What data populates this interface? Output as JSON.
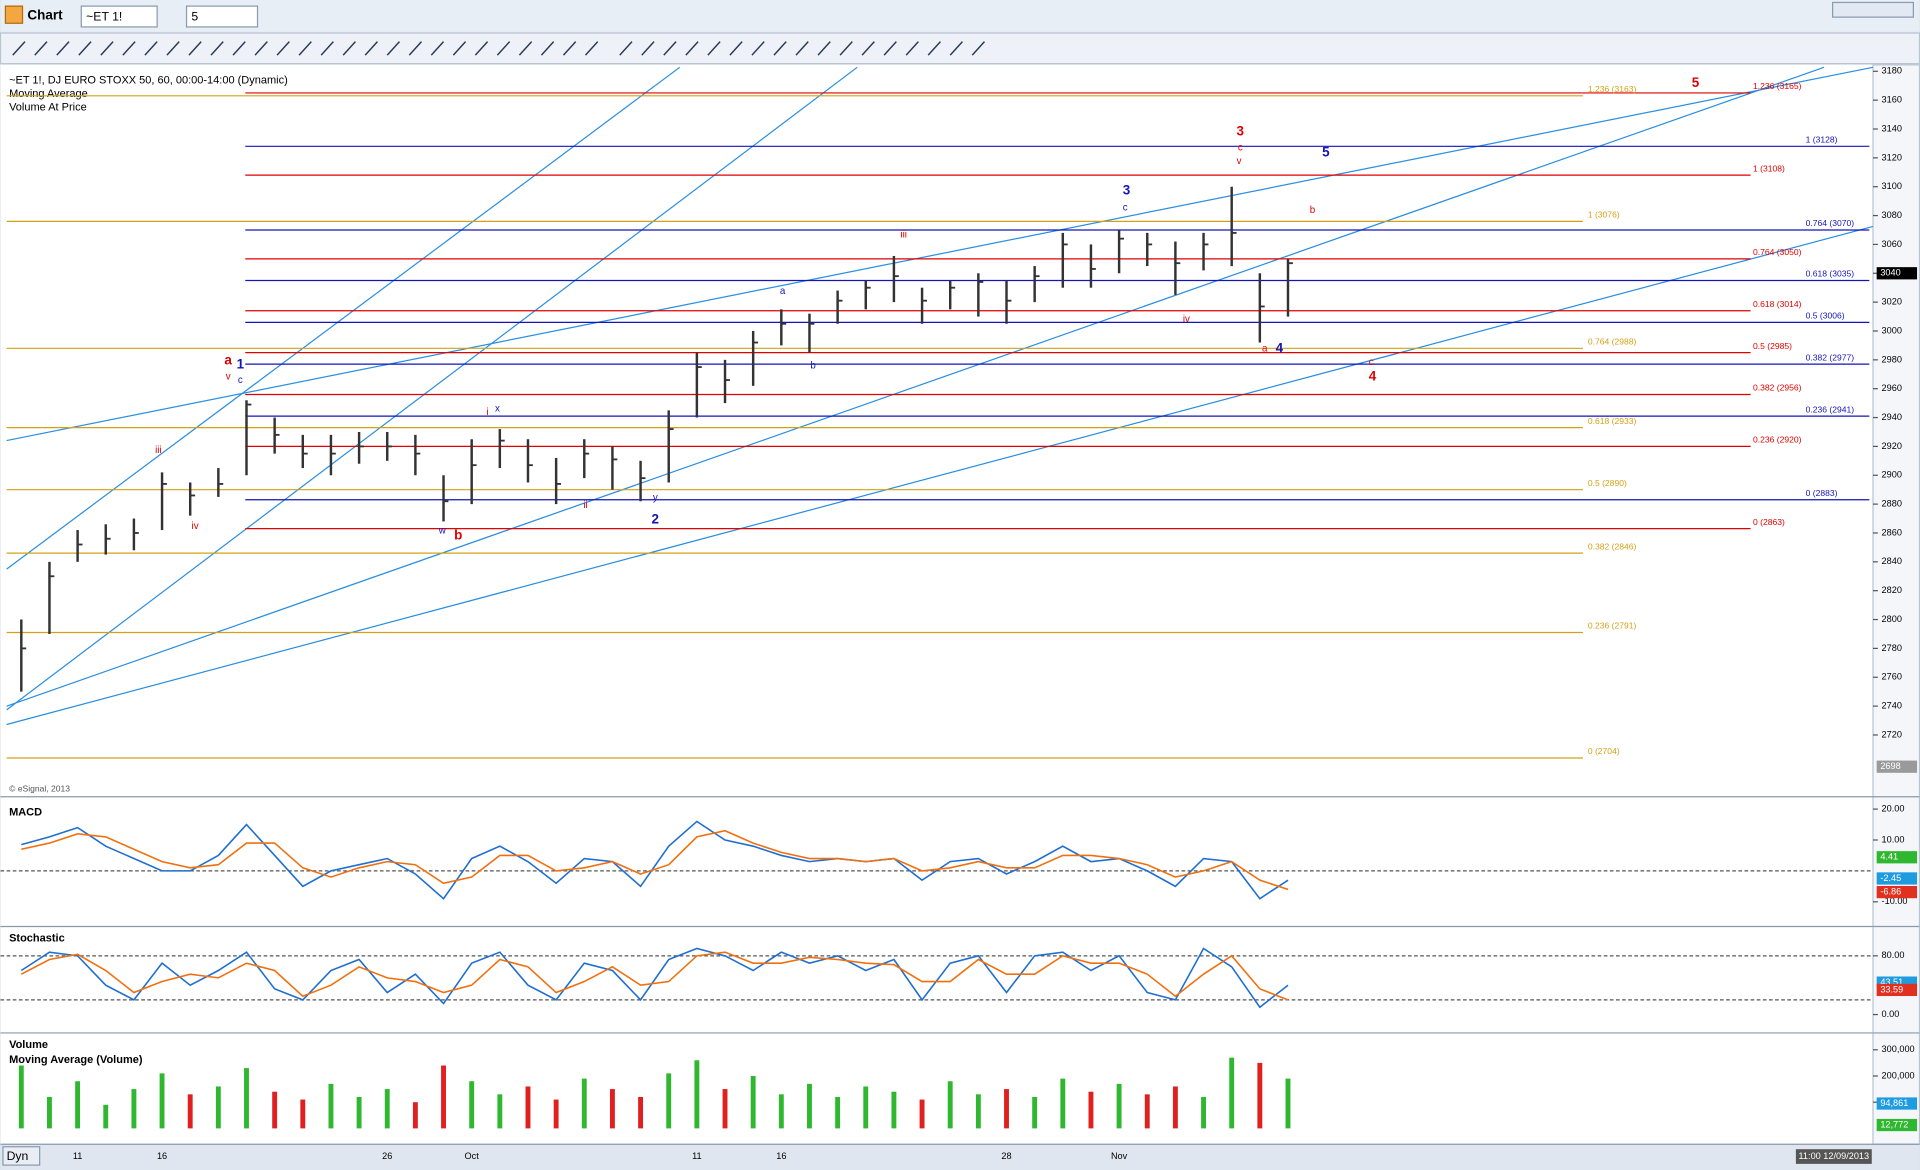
{
  "window": {
    "title": "Chart",
    "symbol": "~ET 1!",
    "interval": "5",
    "date_mode": "Dyn",
    "timestamp": "11:00 12/09/2013",
    "copyright": "© eSignal, 2013"
  },
  "chart_data": [
    {
      "type": "ohlc",
      "title": "~ET 1!, DJ EURO STOXX 50, 60, 00:00-14:00 (Dynamic)",
      "studies": [
        "Moving Average",
        "Volume At Price"
      ],
      "categories": [
        null,
        null,
        "11",
        null,
        null,
        "16",
        null,
        null,
        null,
        null,
        null,
        null,
        null,
        "26",
        null,
        null,
        "Oct",
        null,
        null,
        null,
        null,
        null,
        null,
        null,
        "11",
        null,
        null,
        "16",
        null,
        null,
        null,
        null,
        null,
        null,
        null,
        "28",
        null,
        null,
        null,
        "Nov",
        null,
        null,
        null,
        null,
        null,
        null
      ],
      "close": [
        2780,
        2830,
        2852,
        2856,
        2860,
        2894,
        2886,
        2894,
        2949,
        2928,
        2915,
        2915,
        2920,
        2920,
        2915,
        2882,
        2907,
        2924,
        2907,
        2894,
        2915,
        2911,
        2898,
        2932,
        2975,
        2966,
        2992,
        3005,
        3005,
        3021,
        3030,
        3038,
        3021,
        3030,
        3034,
        3021,
        3038,
        3060,
        3043,
        3064,
        3060,
        3047,
        3060,
        3068,
        3017,
        3047
      ],
      "high": [
        2800,
        2840,
        2862,
        2866,
        2870,
        2902,
        2895,
        2905,
        2952,
        2940,
        2928,
        2928,
        2930,
        2930,
        2928,
        2900,
        2925,
        2932,
        2925,
        2912,
        2925,
        2920,
        2910,
        2945,
        2985,
        2980,
        3000,
        3015,
        3012,
        3028,
        3035,
        3052,
        3030,
        3035,
        3040,
        3035,
        3045,
        3068,
        3060,
        3070,
        3068,
        3062,
        3068,
        3100,
        3040,
        3050
      ],
      "low": [
        2750,
        2790,
        2840,
        2845,
        2848,
        2862,
        2872,
        2885,
        2900,
        2915,
        2905,
        2900,
        2908,
        2910,
        2900,
        2868,
        2880,
        2905,
        2895,
        2880,
        2898,
        2890,
        2882,
        2895,
        2940,
        2950,
        2962,
        2990,
        2985,
        3005,
        3015,
        3020,
        3005,
        3015,
        3010,
        3005,
        3020,
        3030,
        3030,
        3040,
        3045,
        3025,
        3042,
        3045,
        2992,
        3010
      ],
      "color": "#333333",
      "ylim": [
        2695,
        3187
      ],
      "yticks": [
        2720,
        2740,
        2760,
        2780,
        2800,
        2820,
        2840,
        2860,
        2880,
        2900,
        2920,
        2940,
        2960,
        2980,
        3000,
        3020,
        3040,
        3060,
        3080,
        3100,
        3120,
        3140,
        3160,
        3180
      ],
      "markers": [
        {
          "value": 3040,
          "color": "#000000"
        },
        {
          "value": 2698,
          "color": "#9a9a9a"
        }
      ],
      "fib_sets": [
        {
          "color": "#e00000",
          "levels": [
            {
              "value": 3165,
              "label": "1.236 (3165)"
            },
            {
              "value": 3108,
              "label": "1 (3108)"
            },
            {
              "value": 3050,
              "label": "0.764 (3050)"
            },
            {
              "value": 3014,
              "label": "0.618 (3014)"
            },
            {
              "value": 2985,
              "label": "0.5 (2985)"
            },
            {
              "value": 2956,
              "label": "0.382 (2956)"
            },
            {
              "value": 2920,
              "label": "0.236 (2920)"
            },
            {
              "value": 2863,
              "label": "0 (2863)"
            }
          ]
        },
        {
          "color": "#1414b8",
          "levels": [
            {
              "value": 3128,
              "label": "1 (3128)"
            },
            {
              "value": 3070,
              "label": "0.764 (3070)"
            },
            {
              "value": 3035,
              "label": "0.618 (3035)"
            },
            {
              "value": 3006,
              "label": "0.5 (3006)"
            },
            {
              "value": 2977,
              "label": "0.382 (2977)"
            },
            {
              "value": 2941,
              "label": "0.236 (2941)"
            },
            {
              "value": 2883,
              "label": "0 (2883)"
            }
          ]
        },
        {
          "color": "#d4a017",
          "levels": [
            {
              "value": 3163,
              "label": "1.236 (3163)"
            },
            {
              "value": 3076,
              "label": "1 (3076)"
            },
            {
              "value": 2988,
              "label": "0.764 (2988)"
            },
            {
              "value": 2933,
              "label": "0.618 (2933)"
            },
            {
              "value": 2890,
              "label": "0.5 (2890)"
            },
            {
              "value": 2846,
              "label": "0.382 (2846)"
            },
            {
              "value": 2791,
              "label": "0.236 (2791)"
            },
            {
              "value": 2704,
              "label": "0 (2704)"
            }
          ]
        }
      ],
      "wave_labels": [
        {
          "text": "a",
          "color": "#e00000"
        },
        {
          "text": "v",
          "color": "#e00000"
        },
        {
          "text": "1",
          "color": "#1414b8"
        },
        {
          "text": "c",
          "color": "#1414b8"
        },
        {
          "text": "iii",
          "color": "#e00000"
        },
        {
          "text": "iv",
          "color": "#e00000"
        },
        {
          "text": "w",
          "color": "#1414b8"
        },
        {
          "text": "b",
          "color": "#e00000"
        },
        {
          "text": "i",
          "color": "#e00000"
        },
        {
          "text": "x",
          "color": "#1414b8"
        },
        {
          "text": "ii",
          "color": "#e00000"
        },
        {
          "text": "y",
          "color": "#1414b8"
        },
        {
          "text": "2",
          "color": "#1414b8"
        },
        {
          "text": "a",
          "color": "#1414b8"
        },
        {
          "text": "b",
          "color": "#1414b8"
        },
        {
          "text": "iii",
          "color": "#e00000"
        },
        {
          "text": "3",
          "color": "#1414b8"
        },
        {
          "text": "c",
          "color": "#1414b8"
        },
        {
          "text": "3",
          "color": "#e00000"
        },
        {
          "text": "c",
          "color": "#e00000"
        },
        {
          "text": "v",
          "color": "#e00000"
        },
        {
          "text": "5",
          "color": "#1414b8"
        },
        {
          "text": "b",
          "color": "#e00000"
        },
        {
          "text": "iv",
          "color": "#e00000"
        },
        {
          "text": "a",
          "color": "#e00000"
        },
        {
          "text": "4",
          "color": "#1414b8"
        },
        {
          "text": "c",
          "color": "#e00000"
        },
        {
          "text": "4",
          "color": "#e00000"
        },
        {
          "text": "5",
          "color": "#e00000"
        }
      ]
    },
    {
      "type": "line",
      "title": "MACD",
      "series": [
        {
          "color": "#1f6fd0",
          "values": [
            8.5,
            11,
            14,
            8,
            4,
            0,
            0,
            5,
            15,
            5,
            -5,
            0,
            2,
            4,
            -1,
            -9,
            4,
            8,
            3,
            -4,
            4,
            3,
            -5,
            8,
            16,
            10,
            8,
            5,
            3,
            4,
            3,
            4,
            -3,
            3,
            4,
            -1,
            3,
            8,
            3,
            4,
            0,
            -5,
            4,
            3,
            -9,
            -3
          ]
        },
        {
          "color": "#f07010",
          "values": [
            7,
            9,
            12,
            11,
            7,
            3,
            1,
            2,
            9,
            9,
            1,
            -2,
            1,
            3,
            2,
            -4,
            -2,
            5,
            5,
            0,
            1,
            3,
            -1,
            2,
            11,
            13,
            9,
            6,
            4,
            4,
            3,
            4,
            0,
            1,
            3,
            1,
            1,
            5,
            5,
            4,
            2,
            -2,
            0,
            3,
            -3,
            -6
          ]
        }
      ],
      "ylim": [
        -16,
        24
      ],
      "yticks": [
        {
          "value": 20,
          "label": "20.00"
        },
        {
          "value": 10,
          "label": "10.00"
        },
        {
          "value": -10,
          "label": "-10.00"
        }
      ],
      "ref_lines": [
        0
      ],
      "markers": [
        {
          "value": 4.41,
          "color": "#2fb82f"
        },
        {
          "value": -2.45,
          "color": "#1f9be0"
        },
        {
          "value": -6.86,
          "color": "#e03020"
        }
      ]
    },
    {
      "type": "line",
      "title": "Stochastic",
      "series": [
        {
          "color": "#1f6fd0",
          "values": [
            60,
            85,
            80,
            40,
            20,
            70,
            40,
            60,
            85,
            35,
            20,
            60,
            75,
            30,
            55,
            15,
            70,
            85,
            40,
            20,
            70,
            60,
            20,
            75,
            90,
            80,
            60,
            85,
            70,
            80,
            60,
            75,
            20,
            70,
            80,
            30,
            80,
            85,
            60,
            80,
            30,
            20,
            90,
            65,
            10,
            40
          ]
        },
        {
          "color": "#f07010",
          "values": [
            55,
            75,
            82,
            60,
            30,
            45,
            55,
            50,
            70,
            60,
            25,
            40,
            65,
            50,
            45,
            30,
            40,
            75,
            65,
            30,
            45,
            65,
            40,
            45,
            80,
            85,
            70,
            70,
            78,
            75,
            70,
            68,
            45,
            45,
            75,
            55,
            55,
            80,
            70,
            70,
            55,
            25,
            55,
            80,
            35,
            20
          ]
        }
      ],
      "ylim": [
        -20,
        115
      ],
      "yticks": [
        {
          "value": 80,
          "label": "80.00"
        },
        {
          "value": 0,
          "label": "0.00"
        }
      ],
      "ref_lines": [
        80,
        20
      ],
      "markers": [
        {
          "value": 43.51,
          "color": "#1f9be0"
        },
        {
          "value": 33.59,
          "color": "#e03020"
        }
      ]
    },
    {
      "type": "volume",
      "title": "Volume",
      "studies": [
        "Moving Average (Volume)"
      ],
      "values": [
        240000,
        120000,
        180000,
        90000,
        150000,
        210000,
        130000,
        160000,
        230000,
        140000,
        110000,
        170000,
        120000,
        150000,
        100000,
        240000,
        180000,
        130000,
        160000,
        110000,
        190000,
        150000,
        120000,
        210000,
        260000,
        150000,
        200000,
        130000,
        170000,
        120000,
        160000,
        140000,
        110000,
        180000,
        130000,
        150000,
        120000,
        190000,
        140000,
        170000,
        130000,
        160000,
        120000,
        270000,
        250000,
        190000
      ],
      "up_color": "#2fb82f",
      "down_color": "#e02020",
      "ylim": [
        0,
        355000
      ],
      "yticks": [
        {
          "value": 300000,
          "label": "300,000"
        },
        {
          "value": 200000,
          "label": "200,000"
        },
        {
          "value": 100000,
          "label": "100,000"
        }
      ],
      "markers": [
        {
          "value": 94861,
          "label": "94,861",
          "color": "#1f9be0"
        },
        {
          "value": 12772,
          "label": "12,772",
          "color": "#2fb82f"
        }
      ]
    }
  ]
}
